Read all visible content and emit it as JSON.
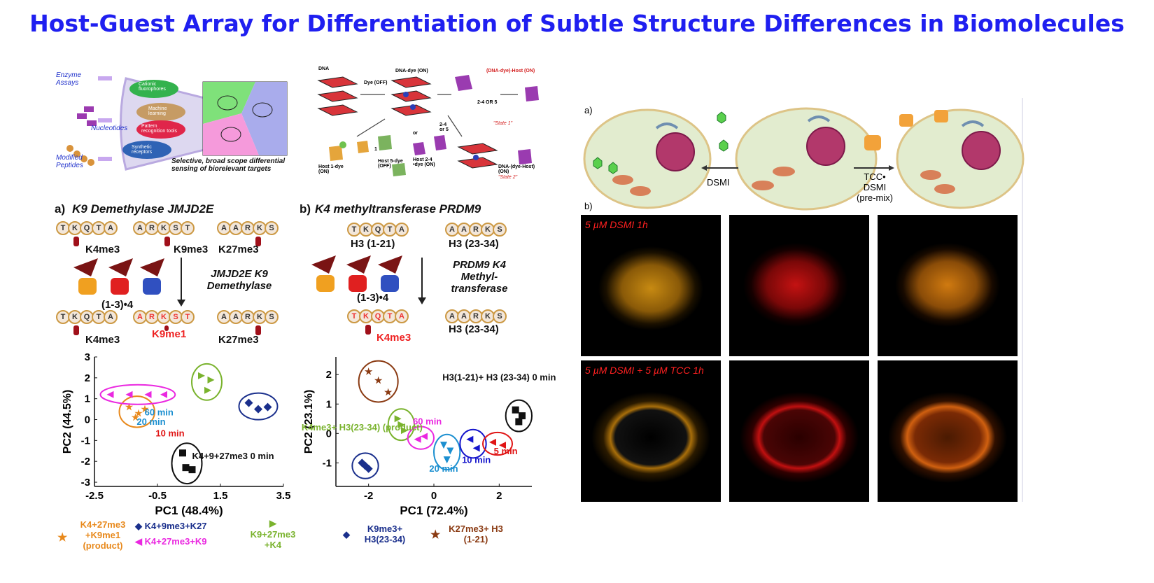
{
  "title": "Host-Guest Array for Differentiation of Subtle Structure Differences in Biomolecules",
  "top_left_schematic": {
    "inputs": [
      "Enzyme Assays",
      "Nucleotides",
      "Modified Peptides"
    ],
    "tools": [
      "Cationic fluorophores",
      "Machine learning",
      "Pattern recognition tools",
      "Synthetic receptors"
    ],
    "caption": "Selective, broad scope differential sensing of biorelevant targets"
  },
  "top_mid_schematic": {
    "labels": [
      "DNA",
      "Dye (OFF)",
      "DNA-dye (ON)",
      "(DNA-dye)-Host (ON)",
      "\"State 1\"",
      "2-4 OR 5",
      "2-4 or 5",
      "or",
      "1",
      "Host 1-dye (ON)",
      "Host 5-dye (OFF)",
      "Host 2-4 •dye (ON)",
      "DNA-(dye-Host) (ON)",
      "\"State 2\""
    ]
  },
  "panel_a": {
    "letter": "a)",
    "heading": "K9 Demethylase JMJD2E",
    "seq1": [
      "T",
      "K",
      "Q",
      "T",
      "A"
    ],
    "seq2": [
      "A",
      "R",
      "K",
      "S",
      "T"
    ],
    "seq3": [
      "A",
      "A",
      "R",
      "K",
      "S"
    ],
    "names": [
      "K4me3",
      "K9me3",
      "K27me3"
    ],
    "host_label": "(1-3)•4",
    "enzyme": "JMJD2E K9 Demethylase",
    "product_names": [
      "K4me3",
      "K9me1",
      "K27me3"
    ]
  },
  "panel_b": {
    "letter": "b)",
    "heading": "K4 methyltransferase PRDM9",
    "seq1": [
      "T",
      "K",
      "Q",
      "T",
      "A"
    ],
    "seq2": [
      "A",
      "A",
      "R",
      "K",
      "S"
    ],
    "names": [
      "H3 (1-21)",
      "H3 (23-34)"
    ],
    "host_label": "(1-3)•4",
    "enzyme": "PRDM9 K4 Methyl- transferase",
    "product_names": [
      "K4me3",
      "H3 (23-34)"
    ]
  },
  "chart_data": [
    {
      "type": "scatter",
      "xlabel": "PC1 (48.4%)",
      "ylabel": "PC2 (44.5%)",
      "xlim": [
        -2.5,
        3.5
      ],
      "ylim": [
        -3.2,
        3
      ],
      "xticks": [
        "-2.5",
        "-0.5",
        "1.5",
        "3.5"
      ],
      "yticks": [
        "3",
        "2",
        "1",
        "0",
        "-1",
        "-2",
        "-3"
      ],
      "annotations": [
        "60 min",
        "20 min",
        "10 min",
        "K4+9+27me3 0 min"
      ],
      "series": [
        {
          "name": "K4+27me3 +K9me1 (product)",
          "color": "#e8891c",
          "marker": "star",
          "x": [
            -1.4,
            -1.1,
            -0.9,
            -1.2
          ],
          "y": [
            0.6,
            0.3,
            0.5,
            0.1
          ]
        },
        {
          "name": "K4+9me3+K27",
          "color": "#1a2f8c",
          "marker": "diamond",
          "x": [
            2.4,
            2.7,
            3.0
          ],
          "y": [
            0.8,
            0.5,
            0.6
          ]
        },
        {
          "name": "K9+27me3 +K4",
          "color": "#7ab32e",
          "marker": "triangle-right",
          "x": [
            0.9,
            1.2,
            1.1
          ],
          "y": [
            2.1,
            1.9,
            1.4
          ]
        },
        {
          "name": "K4+27me3+K9",
          "color": "#ea28e0",
          "marker": "triangle-left",
          "x": [
            -2.0,
            -1.4,
            -0.8,
            -0.3
          ],
          "y": [
            1.2,
            1.2,
            1.2,
            1.2
          ]
        },
        {
          "name": "0 min",
          "color": "#111111",
          "marker": "square",
          "x": [
            0.3,
            0.4,
            0.6
          ],
          "y": [
            -1.6,
            -2.3,
            -2.4
          ]
        }
      ],
      "legend": [
        {
          "label": "K4+27me3 +K9me1 (product)",
          "color": "#e8891c",
          "marker": "★"
        },
        {
          "label": "K4+9me3+K27",
          "color": "#1a2f8c",
          "marker": "◆"
        },
        {
          "label": "K4+27me3+K9",
          "color": "#ea28e0",
          "marker": "◀"
        },
        {
          "label": "K9+27me3 +K4",
          "color": "#7ab32e",
          "marker": "▶"
        }
      ]
    },
    {
      "type": "scatter",
      "xlabel": "PC1 (72.4%)",
      "ylabel": "PC2 (23.1%)",
      "xlim": [
        -3,
        3
      ],
      "ylim": [
        -1.8,
        2.6
      ],
      "xticks": [
        "-2",
        "0",
        "2"
      ],
      "yticks": [
        "2",
        "1",
        "0",
        "-1"
      ],
      "annotations": [
        "H3(1-21)+ H3 (23-34) 0 min",
        "K4me3+ H3(23-34) (product)",
        "60 min",
        "20 min",
        "10 min",
        "5 min"
      ],
      "series": [
        {
          "name": "K27me3+ H3 (1-21)",
          "color": "#8a3a12",
          "marker": "star",
          "x": [
            -2.0,
            -1.7,
            -1.4
          ],
          "y": [
            2.1,
            1.8,
            1.4
          ]
        },
        {
          "name": "H3(1-21)+ H3 (23-34) 0 min",
          "color": "#111111",
          "marker": "square",
          "x": [
            2.5,
            2.7,
            2.6
          ],
          "y": [
            0.8,
            0.6,
            0.4
          ]
        },
        {
          "name": "K4me3+ H3(23-34) (product)",
          "color": "#7ab32e",
          "marker": "triangle-right",
          "x": [
            -1.1,
            -1.0,
            -0.9
          ],
          "y": [
            0.5,
            0.3,
            0.1
          ]
        },
        {
          "name": "K9me3+ H3(23-34)",
          "color": "#1a2f8c",
          "marker": "diamond",
          "x": [
            -2.2,
            -2.1,
            -2.0
          ],
          "y": [
            -1.0,
            -1.1,
            -1.2
          ]
        },
        {
          "name": "60 min",
          "color": "#ea28e0",
          "marker": "triangle-left",
          "x": [
            -0.5,
            -0.3
          ],
          "y": [
            -0.2,
            -0.1
          ]
        },
        {
          "name": "20 min",
          "color": "#1b8fd0",
          "marker": "triangle-down",
          "x": [
            0.3,
            0.5,
            0.4
          ],
          "y": [
            -0.4,
            -0.6,
            -0.9
          ]
        },
        {
          "name": "10 min",
          "color": "#1515cc",
          "marker": "triangle-left",
          "x": [
            1.1,
            1.3
          ],
          "y": [
            -0.2,
            -0.5
          ]
        },
        {
          "name": "5 min",
          "color": "#e01515",
          "marker": "triangle-left",
          "x": [
            1.8,
            2.1
          ],
          "y": [
            -0.3,
            -0.4
          ]
        }
      ],
      "legend": [
        {
          "label": "K9me3+ H3(23-34)",
          "color": "#1a2f8c",
          "marker": "◆"
        },
        {
          "label": "K27me3+ H3 (1-21)",
          "color": "#8a3a12",
          "marker": "★"
        }
      ]
    }
  ],
  "right_figure": {
    "a_label": "a)",
    "b_label": "b)",
    "arrow_left": "DSMI",
    "arrow_right": "TCC• DSMI (pre-mix)",
    "row1_label": "5 µM DSMI 1h",
    "row2_label": "5 µM DSMI + 5 µM TCC 1h"
  }
}
